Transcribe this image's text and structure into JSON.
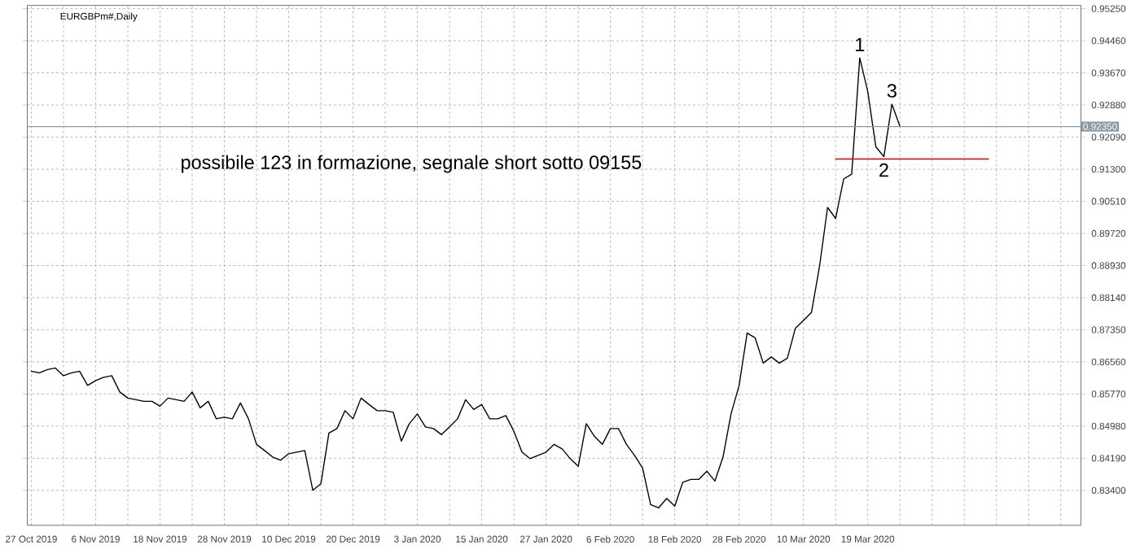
{
  "chart_data": {
    "type": "line",
    "title": "EURGBPm#,Daily",
    "categories": [
      "27 Oct 2019",
      null,
      null,
      null,
      null,
      null,
      null,
      null,
      "6 Nov 2019",
      null,
      null,
      null,
      null,
      null,
      null,
      null,
      "18 Nov 2019",
      null,
      null,
      null,
      null,
      null,
      null,
      null,
      "28 Nov 2019",
      null,
      null,
      null,
      null,
      null,
      null,
      null,
      "10 Dec 2019",
      null,
      null,
      null,
      null,
      null,
      null,
      null,
      "20 Dec 2019",
      null,
      null,
      null,
      null,
      null,
      null,
      null,
      "3 Jan 2020",
      null,
      null,
      null,
      null,
      null,
      null,
      null,
      "15 Jan 2020",
      null,
      null,
      null,
      null,
      null,
      null,
      null,
      "27 Jan 2020",
      null,
      null,
      null,
      null,
      null,
      null,
      null,
      "6 Feb 2020",
      null,
      null,
      null,
      null,
      null,
      null,
      null,
      "18 Feb 2020",
      null,
      null,
      null,
      null,
      null,
      null,
      null,
      "28 Feb 2020",
      null,
      null,
      null,
      null,
      null,
      null,
      null,
      "10 Mar 2020",
      null,
      null,
      null,
      null,
      null,
      null,
      null,
      "19 Mar 2020",
      null,
      null,
      null,
      null,
      null,
      null,
      null,
      null,
      null,
      null,
      null,
      null,
      null,
      null,
      null,
      null,
      null,
      null,
      null,
      null,
      null,
      null,
      null,
      null,
      null,
      null
    ],
    "series": [
      {
        "color": "#000000",
        "values": [
          0.8633,
          0.8629,
          0.8637,
          0.8641,
          0.8622,
          0.8629,
          0.8633,
          0.8598,
          0.861,
          0.8618,
          0.8622,
          0.8582,
          0.8567,
          0.8563,
          0.8559,
          0.8559,
          0.8547,
          0.8567,
          0.8563,
          0.8559,
          0.8582,
          0.8543,
          0.8559,
          0.8516,
          0.852,
          0.8516,
          0.8555,
          0.8516,
          0.8453,
          0.8438,
          0.8422,
          0.8414,
          0.843,
          0.8434,
          0.8438,
          0.834,
          0.8356,
          0.8481,
          0.8492,
          0.8536,
          0.8516,
          0.8567,
          0.8551,
          0.8536,
          0.8536,
          0.8532,
          0.8461,
          0.8504,
          0.8528,
          0.8496,
          0.8492,
          0.8477,
          0.8496,
          0.8516,
          0.8563,
          0.8539,
          0.8551,
          0.8516,
          0.8516,
          0.8524,
          0.8485,
          0.8434,
          0.8418,
          0.8426,
          0.8434,
          0.8453,
          0.8442,
          0.8418,
          0.8399,
          0.8504,
          0.8473,
          0.8453,
          0.8492,
          0.8492,
          0.8453,
          0.8426,
          0.8395,
          0.8305,
          0.8297,
          0.832,
          0.8301,
          0.836,
          0.8367,
          0.8367,
          0.8387,
          0.8363,
          0.8422,
          0.8528,
          0.8598,
          0.8727,
          0.8715,
          0.8653,
          0.8668,
          0.8653,
          0.8665,
          0.8739,
          0.8758,
          0.8778,
          0.8891,
          0.9036,
          0.9009,
          0.9106,
          0.9118,
          0.9404,
          0.9321,
          0.9185,
          0.9161,
          0.929,
          0.9235,
          null,
          null,
          null,
          null,
          null,
          null,
          null,
          null,
          null,
          null,
          null,
          null,
          null,
          null,
          null,
          null,
          null,
          null,
          null,
          null,
          null,
          null
        ]
      },
      {
        "color": "#e00000",
        "values": [
          null,
          null,
          null,
          null,
          null,
          null,
          null,
          null,
          null,
          null,
          null,
          null,
          null,
          null,
          null,
          null,
          null,
          null,
          null,
          null,
          null,
          null,
          null,
          null,
          null,
          null,
          null,
          null,
          null,
          null,
          null,
          null,
          null,
          null,
          null,
          null,
          null,
          null,
          null,
          null,
          null,
          null,
          null,
          null,
          null,
          null,
          null,
          null,
          null,
          null,
          null,
          null,
          null,
          null,
          null,
          null,
          null,
          null,
          null,
          null,
          null,
          null,
          null,
          null,
          null,
          null,
          null,
          null,
          null,
          null,
          null,
          null,
          null,
          null,
          null,
          null,
          null,
          null,
          null,
          null,
          null,
          null,
          null,
          null,
          null,
          null,
          null,
          null,
          null,
          null,
          null,
          null,
          null,
          null,
          null,
          null,
          null,
          null,
          null,
          null,
          0.9155,
          0.9155,
          0.9155,
          0.9155,
          0.9155,
          0.9155,
          0.9155,
          0.9155,
          0.9155,
          0.9155,
          0.9155,
          0.9155,
          0.9155,
          0.9155,
          0.9155,
          0.9155,
          0.9155,
          0.9155,
          0.9155,
          0.9155,
          null,
          null,
          null,
          null,
          null,
          null,
          null,
          null,
          null,
          null,
          null
        ]
      }
    ],
    "ylim": [
      0.8254,
      0.9533
    ],
    "yticks": [
      {
        "value": 0.834,
        "label": "0.83400"
      },
      {
        "value": 0.8419,
        "label": "0.84190"
      },
      {
        "value": 0.8498,
        "label": "0.84980"
      },
      {
        "value": 0.8577,
        "label": "0.85770"
      },
      {
        "value": 0.8656,
        "label": "0.86560"
      },
      {
        "value": 0.8735,
        "label": "0.87350"
      },
      {
        "value": 0.8814,
        "label": "0.88140"
      },
      {
        "value": 0.8893,
        "label": "0.88930"
      },
      {
        "value": 0.8972,
        "label": "0.89720"
      },
      {
        "value": 0.9051,
        "label": "0.90510"
      },
      {
        "value": 0.913,
        "label": "0.91300"
      },
      {
        "value": 0.9209,
        "label": "0.92090"
      },
      {
        "value": 0.9288,
        "label": "0.92880"
      },
      {
        "value": 0.9367,
        "label": "0.93670"
      },
      {
        "value": 0.9446,
        "label": "0.94460"
      },
      {
        "value": 0.9525,
        "label": "0.95250"
      }
    ],
    "ref_lines": [
      {
        "axis": "y",
        "value": 0.9235,
        "label": "0.92350",
        "color": "#8c9aa6"
      }
    ],
    "annotations": [
      {
        "text": "1",
        "y": 0.9404
      },
      {
        "text": "2",
        "y": 0.9161
      },
      {
        "text": "3",
        "y": 0.929
      },
      "possibile 123  in formazione, segnale short sotto 09155"
    ],
    "grid": true,
    "marker": "none",
    "line_style": "solid"
  }
}
